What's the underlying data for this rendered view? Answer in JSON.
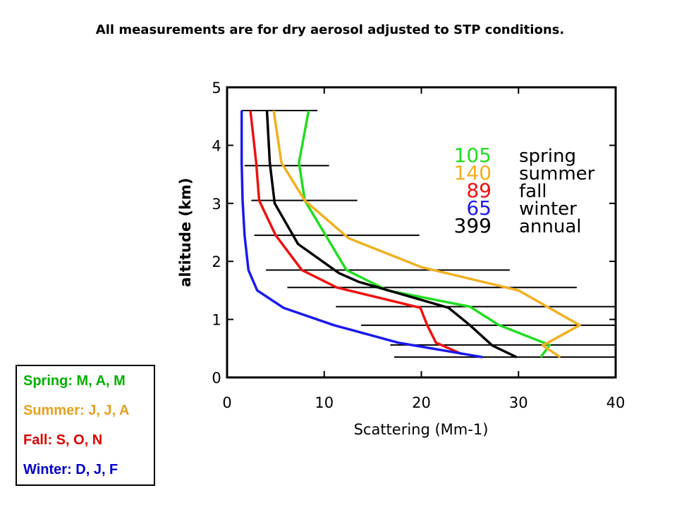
{
  "slide_title": "All measurements are for dry aerosol adjusted to STP conditions.",
  "season_key": [
    {
      "label": "Spring: M, A, M",
      "color": "#00b000"
    },
    {
      "label": "Summer: J, J, A",
      "color": "#e6a020"
    },
    {
      "label": "Fall: S, O, N",
      "color": "#e00000"
    },
    {
      "label": "Winter: D, J, F",
      "color": "#0000cc"
    }
  ],
  "chart_data": {
    "type": "line",
    "xlabel": "Scattering (Mm-1)",
    "ylabel": "altitude (km)",
    "xlim": [
      0,
      40
    ],
    "ylim": [
      0,
      5
    ],
    "xticks": [
      "0",
      "10",
      "20",
      "30",
      "40"
    ],
    "yticks": [
      "0",
      "1",
      "2",
      "3",
      "4",
      "5"
    ],
    "grid": false,
    "legend_position": "top-right",
    "series": [
      {
        "name": "spring",
        "count": "105",
        "color": "#22dd22",
        "points": [
          [
            32.3,
            0.35
          ],
          [
            33.2,
            0.56
          ],
          [
            28,
            0.9
          ],
          [
            25,
            1.22
          ],
          [
            16.5,
            1.5
          ],
          [
            12.3,
            1.85
          ],
          [
            8,
            3.05
          ],
          [
            7.4,
            3.7
          ],
          [
            8.4,
            4.6
          ]
        ]
      },
      {
        "name": "summer",
        "count": "140",
        "color": "#f0b020",
        "points": [
          [
            34.3,
            0.35
          ],
          [
            32.5,
            0.55
          ],
          [
            36.3,
            0.9
          ],
          [
            30,
            1.5
          ],
          [
            20,
            1.9
          ],
          [
            12.5,
            2.4
          ],
          [
            8,
            3.05
          ],
          [
            5.6,
            3.7
          ],
          [
            4.8,
            4.6
          ]
        ]
      },
      {
        "name": "fall",
        "count": "89",
        "color": "#ee1111",
        "points": [
          [
            24.2,
            0.4
          ],
          [
            21.5,
            0.6
          ],
          [
            20.6,
            0.9
          ],
          [
            19.9,
            1.2
          ],
          [
            11.3,
            1.55
          ],
          [
            7.7,
            1.85
          ],
          [
            5,
            2.45
          ],
          [
            3.3,
            3.05
          ],
          [
            3,
            3.7
          ],
          [
            2.4,
            4.6
          ]
        ]
      },
      {
        "name": "winter",
        "count": "65",
        "color": "#1a1aee",
        "points": [
          [
            26.3,
            0.35
          ],
          [
            17.6,
            0.6
          ],
          [
            11,
            0.9
          ],
          [
            5.8,
            1.2
          ],
          [
            3.1,
            1.5
          ],
          [
            2.2,
            1.85
          ],
          [
            1.8,
            2.45
          ],
          [
            1.6,
            3.05
          ],
          [
            1.5,
            3.7
          ],
          [
            1.5,
            4.6
          ]
        ]
      },
      {
        "name": "annual",
        "count": "399",
        "color": "#000000",
        "points": [
          [
            29.8,
            0.35
          ],
          [
            27.3,
            0.55
          ],
          [
            25,
            0.9
          ],
          [
            22.8,
            1.2
          ],
          [
            13.5,
            1.65
          ],
          [
            11.5,
            1.8
          ],
          [
            7.3,
            2.3
          ],
          [
            4.9,
            3.0
          ],
          [
            4.4,
            3.7
          ],
          [
            4.1,
            4.6
          ]
        ]
      }
    ],
    "horizontal_bars": [
      {
        "y": 4.6,
        "x1": 1.5,
        "x2": 9.3
      },
      {
        "y": 3.65,
        "x1": 1.8,
        "x2": 10.5
      },
      {
        "y": 3.05,
        "x1": 2.5,
        "x2": 13.4
      },
      {
        "y": 2.45,
        "x1": 2.8,
        "x2": 19.8
      },
      {
        "y": 1.85,
        "x1": 4.0,
        "x2": 29.1
      },
      {
        "y": 1.55,
        "x1": 6.2,
        "x2": 36
      },
      {
        "y": 1.22,
        "x1": 11.2,
        "x2": 40
      },
      {
        "y": 0.9,
        "x1": 13.8,
        "x2": 40
      },
      {
        "y": 0.56,
        "x1": 16.8,
        "x2": 40
      },
      {
        "y": 0.35,
        "x1": 17.2,
        "x2": 40
      }
    ]
  }
}
